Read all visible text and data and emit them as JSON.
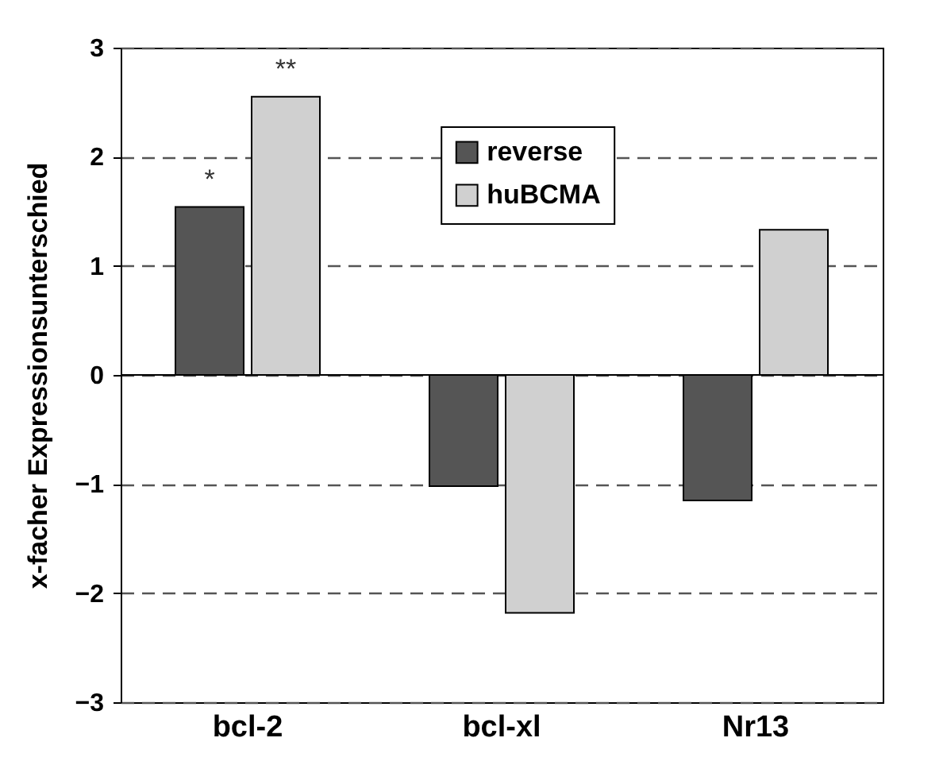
{
  "chart_data": {
    "type": "bar",
    "ylabel": "x-facher Expressionsunterschied",
    "categories": [
      "bcl-2",
      "bcl-xl",
      "Nr13"
    ],
    "series": [
      {
        "name": "reverse",
        "color": "#555555",
        "values": [
          1.54,
          -1.02,
          -1.15
        ]
      },
      {
        "name": "huBCMA",
        "color": "#d0d0d0",
        "values": [
          2.55,
          -2.18,
          1.33
        ]
      }
    ],
    "ylim": [
      -3,
      3
    ],
    "yticks": [
      -3,
      -2,
      -1,
      0,
      1,
      2,
      3
    ],
    "grid": "y",
    "legend": "top",
    "annotations": [
      {
        "text": "*",
        "x": "bcl-2",
        "y": 1.54
      },
      {
        "text": "**",
        "x": "bcl-2",
        "y": 2.55
      }
    ]
  }
}
